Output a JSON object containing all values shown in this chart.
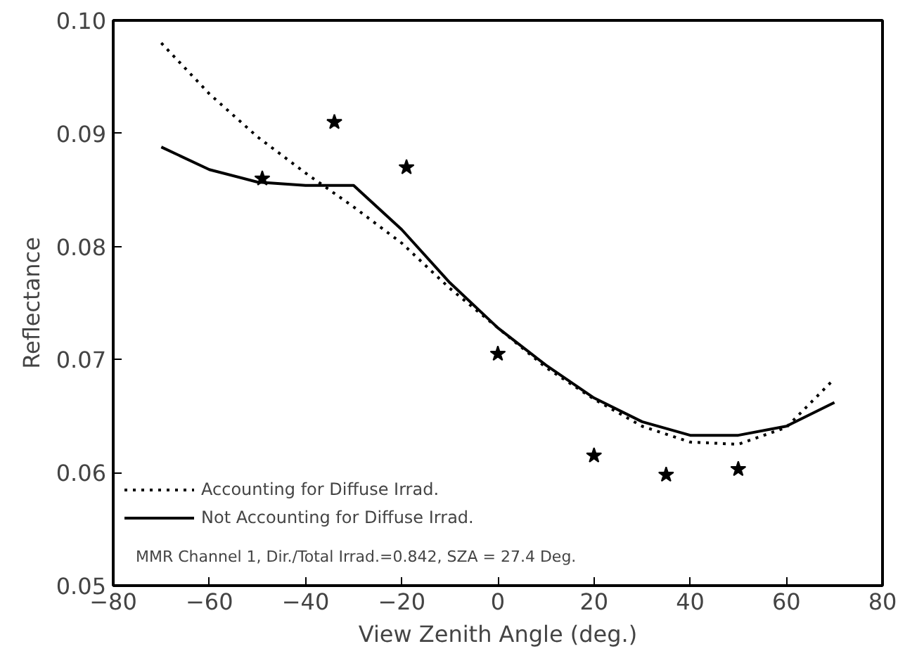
{
  "chart_data": {
    "type": "line",
    "xlabel": "View Zenith Angle (deg.)",
    "ylabel": "Reflectance",
    "xlim": [
      -80,
      80
    ],
    "xticks": [
      {
        "value": -80,
        "label": "−80"
      },
      {
        "value": -60,
        "label": "−60"
      },
      {
        "value": -40,
        "label": "−40"
      },
      {
        "value": -20,
        "label": "−20"
      },
      0,
      20,
      40,
      60,
      80
    ],
    "ylim": [
      0.05,
      0.1
    ],
    "yticks": [
      {
        "value": 0.05,
        "label": "0.05"
      },
      {
        "value": 0.06,
        "label": "0.06"
      },
      {
        "value": 0.07,
        "label": "0.07"
      },
      {
        "value": 0.08,
        "label": "0.08"
      },
      {
        "value": 0.09,
        "label": "0.09"
      },
      {
        "value": 0.1,
        "label": "0.10"
      }
    ],
    "grid": false,
    "legend": "bottom left",
    "series": [
      {
        "name": "Accounting for Diffuse Irrad.",
        "color": "#000000",
        "line_style": "dotted",
        "x": [
          -70,
          -60,
          -50,
          -40,
          -30,
          -20,
          -10,
          0,
          10,
          20,
          30,
          40,
          50,
          60,
          70
        ],
        "values": [
          0.098,
          0.0935,
          0.0897,
          0.0865,
          0.0835,
          0.0803,
          0.0763,
          0.0728,
          0.0693,
          0.0665,
          0.0641,
          0.0627,
          0.0625,
          0.064,
          0.0683
        ]
      },
      {
        "name": "Not Accounting for Diffuse Irrad.",
        "color": "#000000",
        "line_style": "solid",
        "x": [
          -70,
          -60,
          -50,
          -40,
          -30,
          -20,
          -10,
          0,
          10,
          20,
          30,
          40,
          50,
          60,
          70
        ],
        "values": [
          0.0888,
          0.0868,
          0.0857,
          0.0854,
          0.0854,
          0.0815,
          0.0768,
          0.0728,
          0.0695,
          0.0666,
          0.0645,
          0.0633,
          0.0633,
          0.0641,
          0.0662
        ]
      },
      {
        "type": "scatter",
        "marker": "star",
        "color": "#000000",
        "x": [
          -49,
          -34,
          -19,
          0,
          20,
          35,
          50
        ],
        "values": [
          0.086,
          0.091,
          0.087,
          0.0705,
          0.0615,
          0.0598,
          0.0603
        ]
      }
    ],
    "annotations": [
      "MMR Channel 1, Dir./Total Irrad.=0.842, SZA = 27.4 Deg."
    ]
  }
}
